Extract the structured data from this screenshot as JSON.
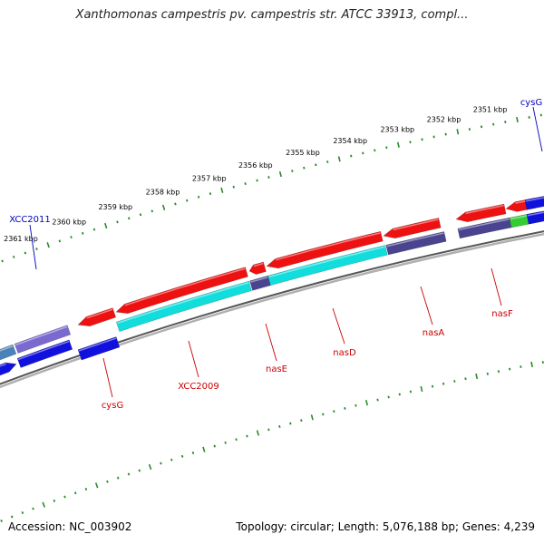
{
  "title": "Xanthomonas campestris pv. campestris str. ATCC 33913, compl...",
  "accession": "Accession: NC_003902",
  "summary": "Topology: circular; Length: 5,076,188 bp; Genes: 4,239",
  "kbp_labels": [
    "2351 kbp",
    "2352 kbp",
    "2353 kbp",
    "2354 kbp",
    "2355 kbp",
    "2356 kbp",
    "2357 kbp",
    "2358 kbp",
    "2359 kbp",
    "2360 kbp",
    "2361 kbp"
  ],
  "colors": {
    "forward": "#ee1111",
    "cyan": "#11dddd",
    "blue": "#1111dd",
    "slate": "#4a4490",
    "lavender": "#7a6ad0",
    "steel": "#4a82b8",
    "green": "#33cc33",
    "backbone": "#888888",
    "ticks": "#2a8a2a",
    "label_red": "#cc0000",
    "label_blue": "#0000bb"
  },
  "genes": [
    {
      "name": "cysG",
      "color": "label_red"
    },
    {
      "name": "XCC2009",
      "color": "label_red"
    },
    {
      "name": "nasE",
      "color": "label_red"
    },
    {
      "name": "nasD",
      "color": "label_red"
    },
    {
      "name": "nasA",
      "color": "label_red"
    },
    {
      "name": "nasF",
      "color": "label_red"
    },
    {
      "name": "XCC2011",
      "color": "label_blue"
    },
    {
      "name": "cysG",
      "color": "label_blue"
    }
  ]
}
